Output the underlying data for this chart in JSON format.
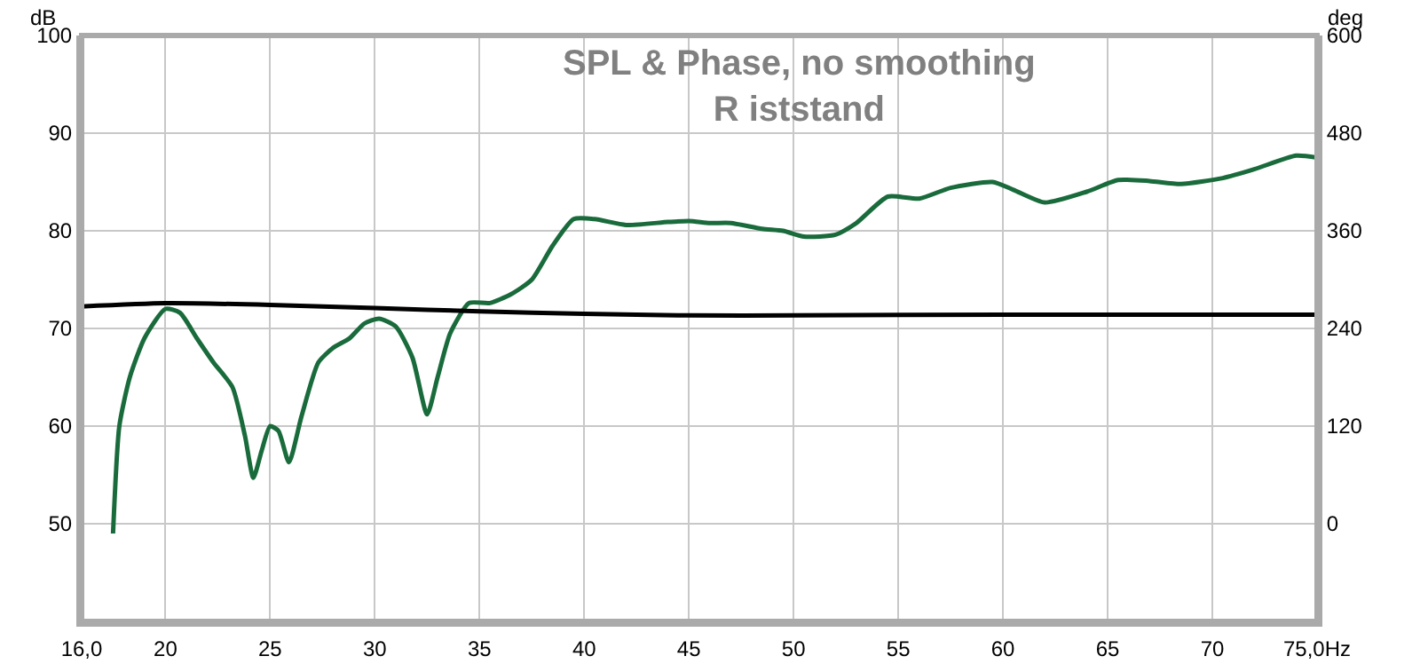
{
  "chart_data": {
    "type": "line",
    "title": "SPL & Phase, no smoothing",
    "subtitle": "R iststand",
    "ylabel": "dB",
    "y2label": "deg",
    "xlim": [
      16,
      75
    ],
    "xticks": [
      {
        "value": 16,
        "label": "16,0"
      },
      20,
      25,
      30,
      35,
      40,
      45,
      50,
      55,
      60,
      65,
      70,
      {
        "value": 75,
        "label": "75,0Hz"
      }
    ],
    "ylim": [
      40,
      100
    ],
    "yticks": [
      50,
      60,
      70,
      80,
      90,
      100
    ],
    "y2lim": [
      -120,
      600
    ],
    "y2ticks": [
      0,
      120,
      240,
      360,
      480,
      600
    ],
    "grid": true,
    "line_style": "solid",
    "marker": "none",
    "series": [
      {
        "color": "#1a6b3c",
        "x": [
          17.5,
          17.8,
          18.3,
          19,
          20,
          20.7,
          21.5,
          22.3,
          23.2,
          23.8,
          24.2,
          24.6,
          25,
          25.4,
          25.9,
          26.5,
          27.3,
          28,
          28.8,
          29.5,
          30.2,
          31,
          31.8,
          32.5,
          33,
          33.6,
          34.5,
          35.5,
          36.5,
          37.5,
          38.5,
          39.5,
          40.5,
          42,
          44,
          45,
          46,
          47,
          48.5,
          49.5,
          50.5,
          52,
          53,
          54.5,
          56,
          57.5,
          59.5,
          60.5,
          62,
          64,
          65.5,
          67,
          68.5,
          70.5,
          72,
          74,
          75
        ],
        "values": [
          49,
          60,
          65,
          69,
          72,
          71.6,
          69,
          66.5,
          64,
          59,
          54.7,
          57.5,
          60,
          59.5,
          56.3,
          61,
          66.5,
          68,
          69,
          70.5,
          71,
          70.2,
          67,
          61.2,
          65,
          69.5,
          72.6,
          72.6,
          73.5,
          75,
          78.5,
          81.2,
          81.2,
          80.6,
          80.9,
          81,
          80.8,
          80.8,
          80.2,
          80,
          79.4,
          79.6,
          80.8,
          83.5,
          83.3,
          84.4,
          85,
          84.2,
          82.9,
          84,
          85.2,
          85.1,
          84.8,
          85.4,
          86.3,
          87.7,
          87.5
        ]
      },
      {
        "color": "#000000",
        "axis": "y2",
        "x": [
          16,
          20,
          25,
          30,
          35,
          40,
          45,
          50,
          60,
          75
        ],
        "values": [
          267,
          271,
          269,
          265,
          261,
          258,
          256,
          256,
          257,
          257
        ]
      }
    ]
  }
}
